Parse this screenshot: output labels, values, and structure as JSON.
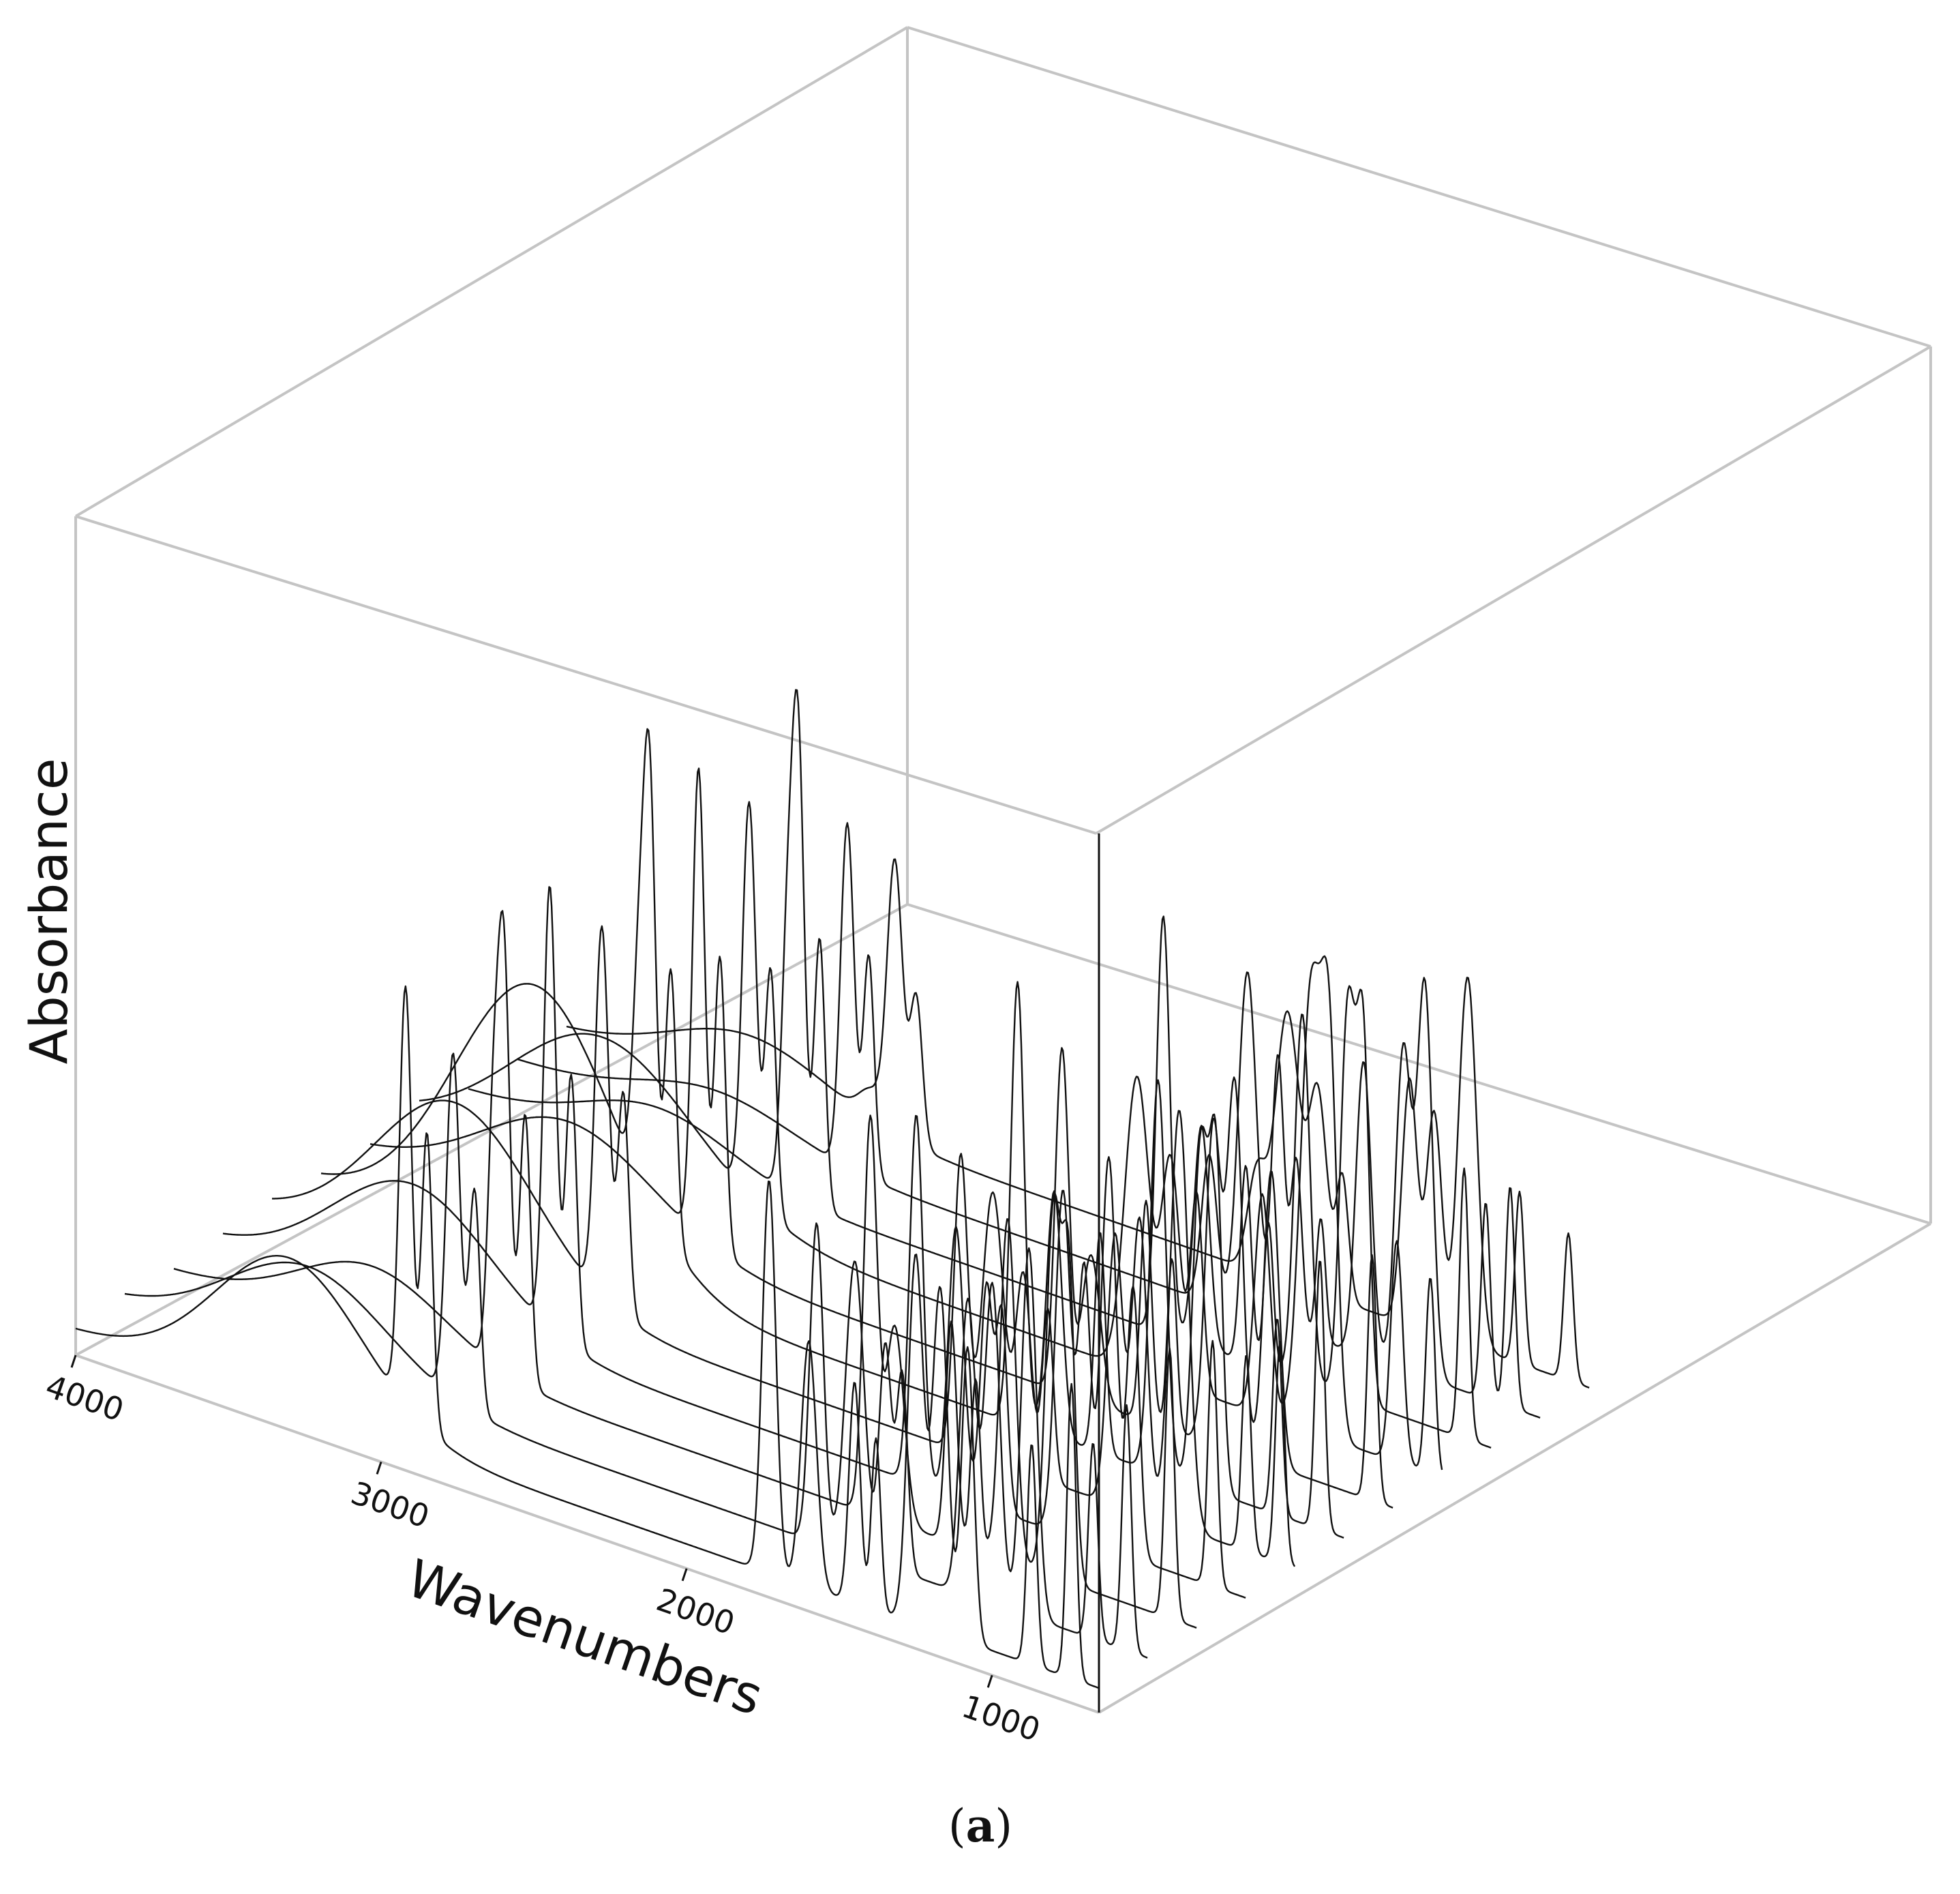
{
  "chart_data": {
    "type": "line",
    "projection": "3d-waterfall",
    "xlabel": "Wavenumbers",
    "ylabel": "Absorbance",
    "xlim": [
      4000,
      650
    ],
    "x_ticks": [
      4000,
      3000,
      2000,
      1000
    ],
    "x_tick_labels": [
      "4000",
      "3000",
      "2000",
      "1000"
    ],
    "grid": false,
    "legend": "none",
    "series_count": 11,
    "line_color": "#111111",
    "box_color": "#c4c4c4",
    "series": [
      {
        "baseline": 0.05,
        "peaks": [
          [
            3400,
            0.12,
            260
          ],
          [
            3000,
            0.06,
            40
          ],
          [
            2925,
            0.55,
            25
          ],
          [
            2855,
            0.3,
            20
          ],
          [
            1740,
            0.2,
            30
          ],
          [
            1640,
            0.55,
            40
          ],
          [
            1540,
            0.4,
            30
          ],
          [
            1460,
            0.25,
            20
          ],
          [
            1240,
            0.5,
            25
          ],
          [
            1160,
            0.45,
            25
          ],
          [
            1050,
            0.75,
            30
          ],
          [
            880,
            0.35,
            15
          ],
          [
            720,
            0.3,
            15
          ]
        ]
      },
      {
        "baseline": 0.05,
        "peaks": [
          [
            3350,
            0.08,
            250
          ],
          [
            2920,
            0.7,
            22
          ],
          [
            2850,
            0.45,
            18
          ],
          [
            1735,
            0.3,
            25
          ],
          [
            1610,
            0.7,
            30
          ],
          [
            1510,
            0.55,
            20
          ],
          [
            1450,
            0.35,
            18
          ],
          [
            1370,
            0.25,
            15
          ],
          [
            1230,
            0.6,
            25
          ],
          [
            1100,
            0.65,
            25
          ],
          [
            1030,
            0.8,
            25
          ],
          [
            830,
            0.4,
            15
          ],
          [
            750,
            0.45,
            15
          ]
        ]
      },
      {
        "baseline": 0.05,
        "peaks": [
          [
            3380,
            0.1,
            240
          ],
          [
            2955,
            0.5,
            20
          ],
          [
            2920,
            0.9,
            20
          ],
          [
            2850,
            0.55,
            18
          ],
          [
            1725,
            0.85,
            22
          ],
          [
            1600,
            0.45,
            25
          ],
          [
            1455,
            0.4,
            18
          ],
          [
            1380,
            0.3,
            15
          ],
          [
            1270,
            0.75,
            25
          ],
          [
            1120,
            0.8,
            25
          ],
          [
            1070,
            0.7,
            20
          ],
          [
            740,
            0.55,
            15
          ]
        ]
      },
      {
        "baseline": 0.05,
        "peaks": [
          [
            3400,
            0.3,
            300
          ],
          [
            2920,
            0.8,
            22
          ],
          [
            2850,
            0.5,
            18
          ],
          [
            1650,
            0.6,
            40
          ],
          [
            1540,
            0.45,
            30
          ],
          [
            1455,
            0.4,
            20
          ],
          [
            1240,
            0.45,
            25
          ],
          [
            1080,
            0.9,
            35
          ],
          [
            1020,
            0.7,
            25
          ],
          [
            800,
            0.45,
            20
          ],
          [
            690,
            0.4,
            15
          ]
        ]
      },
      {
        "baseline": 0.05,
        "peaks": [
          [
            3350,
            0.2,
            280
          ],
          [
            2925,
            0.95,
            20
          ],
          [
            2855,
            0.6,
            18
          ],
          [
            1735,
            0.7,
            22
          ],
          [
            1640,
            0.3,
            30
          ],
          [
            1460,
            0.45,
            18
          ],
          [
            1375,
            0.35,
            15
          ],
          [
            1240,
            0.65,
            25
          ],
          [
            1170,
            0.75,
            25
          ],
          [
            1050,
            0.6,
            25
          ],
          [
            720,
            0.5,
            15
          ]
        ]
      },
      {
        "baseline": 0.05,
        "peaks": [
          [
            3300,
            0.55,
            260
          ],
          [
            2960,
            0.4,
            20
          ],
          [
            2925,
            0.85,
            20
          ],
          [
            2855,
            0.55,
            18
          ],
          [
            1720,
            0.9,
            22
          ],
          [
            1600,
            0.5,
            25
          ],
          [
            1450,
            0.45,
            18
          ],
          [
            1260,
            0.8,
            25
          ],
          [
            1120,
            0.7,
            25
          ],
          [
            1070,
            0.65,
            20
          ],
          [
            870,
            0.4,
            15
          ],
          [
            730,
            0.55,
            15
          ]
        ]
      },
      {
        "baseline": 0.05,
        "peaks": [
          [
            3400,
            0.35,
            260
          ],
          [
            2920,
            0.75,
            22
          ],
          [
            2850,
            0.45,
            18
          ],
          [
            1745,
            0.6,
            22
          ],
          [
            1640,
            0.55,
            35
          ],
          [
            1540,
            0.4,
            25
          ],
          [
            1460,
            0.35,
            18
          ],
          [
            1240,
            0.55,
            25
          ],
          [
            1160,
            0.6,
            25
          ],
          [
            1030,
            0.85,
            30
          ],
          [
            810,
            0.4,
            15
          ],
          [
            700,
            0.45,
            15
          ]
        ]
      },
      {
        "baseline": 0.05,
        "peaks": [
          [
            3380,
            0.25,
            260
          ],
          [
            2930,
            0.9,
            20
          ],
          [
            2860,
            0.55,
            18
          ],
          [
            1730,
            0.75,
            22
          ],
          [
            1600,
            0.55,
            25
          ],
          [
            1500,
            0.45,
            20
          ],
          [
            1450,
            0.4,
            18
          ],
          [
            1250,
            0.7,
            25
          ],
          [
            1180,
            0.55,
            20
          ],
          [
            1100,
            0.8,
            25
          ],
          [
            1020,
            0.55,
            20
          ],
          [
            760,
            0.5,
            15
          ]
        ]
      },
      {
        "baseline": 0.05,
        "peaks": [
          [
            3350,
            0.15,
            240
          ],
          [
            2955,
            0.45,
            18
          ],
          [
            2920,
            0.85,
            20
          ],
          [
            2850,
            0.55,
            18
          ],
          [
            1720,
            0.8,
            22
          ],
          [
            1640,
            0.4,
            30
          ],
          [
            1455,
            0.45,
            18
          ],
          [
            1375,
            0.35,
            15
          ],
          [
            1270,
            0.7,
            25
          ],
          [
            1120,
            0.75,
            25
          ],
          [
            1070,
            0.6,
            20
          ],
          [
            740,
            0.55,
            15
          ]
        ]
      },
      {
        "baseline": 0.05,
        "peaks": [
          [
            3400,
            0.2,
            260
          ],
          [
            2925,
            0.7,
            22
          ],
          [
            2855,
            0.45,
            18
          ],
          [
            1735,
            0.65,
            22
          ],
          [
            1610,
            0.6,
            30
          ],
          [
            1510,
            0.45,
            20
          ],
          [
            1455,
            0.4,
            18
          ],
          [
            1240,
            0.6,
            25
          ],
          [
            1160,
            0.65,
            25
          ],
          [
            1040,
            0.75,
            25
          ],
          [
            830,
            0.4,
            15
          ],
          [
            720,
            0.5,
            15
          ]
        ]
      },
      {
        "baseline": 0.05,
        "peaks": [
          [
            3300,
            0.3,
            240
          ],
          [
            2920,
            0.85,
            20
          ],
          [
            2850,
            0.6,
            18
          ],
          [
            1730,
            0.8,
            22
          ],
          [
            1600,
            0.5,
            25
          ],
          [
            1450,
            0.45,
            18
          ],
          [
            1380,
            0.35,
            15
          ],
          [
            1250,
            0.75,
            25
          ],
          [
            1170,
            0.7,
            25
          ],
          [
            1080,
            0.6,
            20
          ],
          [
            870,
            0.45,
            15
          ],
          [
            740,
            0.6,
            15
          ]
        ]
      }
    ]
  },
  "caption": {
    "open": "(",
    "letter": "a",
    "close": ")"
  }
}
